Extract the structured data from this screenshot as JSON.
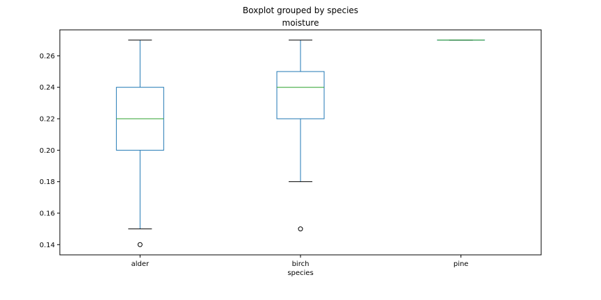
{
  "chart_data": {
    "type": "box",
    "suptitle": "Boxplot grouped by species",
    "title": "moisture",
    "xlabel": "species",
    "ylabel": "",
    "categories": [
      "alder",
      "birch",
      "pine"
    ],
    "boxes": [
      {
        "category": "alder",
        "whisker_low": 0.15,
        "q1": 0.2,
        "median": 0.22,
        "q3": 0.24,
        "whisker_high": 0.27,
        "outliers": [
          0.14
        ]
      },
      {
        "category": "birch",
        "whisker_low": 0.18,
        "q1": 0.22,
        "median": 0.24,
        "q3": 0.25,
        "whisker_high": 0.27,
        "outliers": [
          0.15
        ]
      },
      {
        "category": "pine",
        "whisker_low": 0.27,
        "q1": 0.27,
        "median": 0.27,
        "q3": 0.27,
        "whisker_high": 0.27,
        "outliers": []
      }
    ],
    "yticks": [
      "0.14",
      "0.16",
      "0.18",
      "0.20",
      "0.22",
      "0.24",
      "0.26"
    ],
    "ylim": [
      0.1335,
      0.2765
    ],
    "grid": false,
    "colors": {
      "box": "#1f77b4",
      "median": "#2ca02c",
      "cap": "#000000"
    }
  }
}
